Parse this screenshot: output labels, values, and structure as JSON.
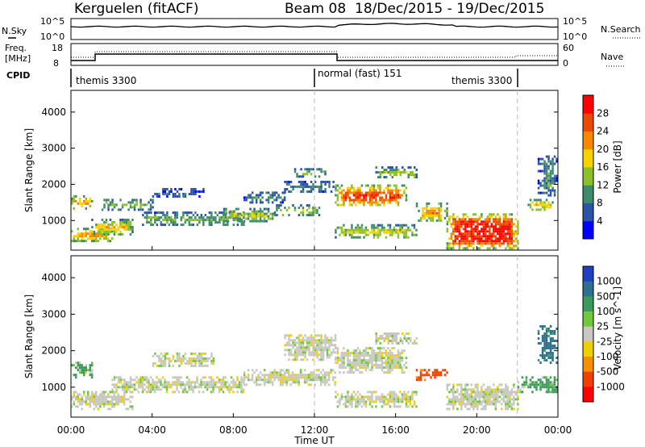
{
  "header": {
    "station": "Kerguelen (fitACF)",
    "beam": "Beam 08",
    "date_range": "18/Dec/2015 - 19/Dec/2015"
  },
  "noise_panel": {
    "left_label": "N.Sky",
    "right_label": "N.Search",
    "ticks_left": [
      "10^5",
      "10^0"
    ],
    "ticks_right": [
      "10^5",
      "10^0"
    ]
  },
  "freq_panel": {
    "left_label_1": "Freq.",
    "left_label_2": "[MHz]",
    "right_label": "Nave",
    "ticks_left": [
      "18",
      "8"
    ],
    "ticks_right": [
      "60",
      "0"
    ]
  },
  "cpid": {
    "label": "CPID",
    "segments": [
      {
        "name": "themis 3300",
        "start": 0,
        "end": 13
      },
      {
        "name": "normal (fast) 151",
        "start": 13,
        "end": 22
      },
      {
        "name": "themis 3300",
        "start": 22,
        "end": 24
      }
    ]
  },
  "chart_data": [
    {
      "type": "heatmap",
      "title": "Power",
      "xlabel": "",
      "ylabel": "Slant Range [km]",
      "x_range": [
        0,
        24
      ],
      "y_range": [
        180,
        4600
      ],
      "y_ticks": [
        1000,
        2000,
        3000,
        4000
      ],
      "colorbar": {
        "label": "Power [dB]",
        "ticks": [
          4,
          8,
          12,
          16,
          20,
          24,
          28
        ],
        "range": [
          0,
          32
        ],
        "colors": [
          "#0000ff",
          "#2b53a8",
          "#3d8a6c",
          "#8bbf2c",
          "#f6d300",
          "#f48800",
          "#e94b00",
          "#ff0000"
        ]
      },
      "echo_bands": [
        {
          "t0": 0.0,
          "t1": 2.0,
          "r0": 450,
          "r1": 800,
          "value": 26
        },
        {
          "t0": 0.0,
          "t1": 1.0,
          "r0": 1350,
          "r1": 1700,
          "value": 26
        },
        {
          "t0": 1.0,
          "t1": 3.0,
          "r0": 600,
          "r1": 1050,
          "value": 20
        },
        {
          "t0": 1.5,
          "t1": 4.0,
          "r0": 1300,
          "r1": 1600,
          "value": 16
        },
        {
          "t0": 3.5,
          "t1": 8.5,
          "r0": 850,
          "r1": 1250,
          "value": 14
        },
        {
          "t0": 4.0,
          "t1": 6.5,
          "r0": 1650,
          "r1": 1900,
          "value": 10
        },
        {
          "t0": 7.5,
          "t1": 10.0,
          "r0": 1000,
          "r1": 1350,
          "value": 18
        },
        {
          "t0": 8.5,
          "t1": 10.5,
          "r0": 1500,
          "r1": 1800,
          "value": 12
        },
        {
          "t0": 10.0,
          "t1": 12.2,
          "r0": 1150,
          "r1": 1450,
          "value": 18
        },
        {
          "t0": 10.5,
          "t1": 13.0,
          "r0": 1800,
          "r1": 2100,
          "value": 12
        },
        {
          "t0": 11.0,
          "t1": 12.5,
          "r0": 2200,
          "r1": 2450,
          "value": 18
        },
        {
          "t0": 13.0,
          "t1": 16.5,
          "r0": 1400,
          "r1": 2000,
          "value": 26
        },
        {
          "t0": 13.0,
          "t1": 17.0,
          "r0": 500,
          "r1": 900,
          "value": 18
        },
        {
          "t0": 15.0,
          "t1": 17.0,
          "r0": 2200,
          "r1": 2500,
          "value": 18
        },
        {
          "t0": 17.0,
          "t1": 18.5,
          "r0": 1000,
          "r1": 1500,
          "value": 22
        },
        {
          "t0": 18.5,
          "t1": 22.0,
          "r0": 250,
          "r1": 1200,
          "value": 29
        },
        {
          "t0": 22.5,
          "t1": 23.7,
          "r0": 1300,
          "r1": 1600,
          "value": 24
        },
        {
          "t0": 23.0,
          "t1": 24.0,
          "r0": 1700,
          "r1": 2800,
          "value": 10
        }
      ]
    },
    {
      "type": "heatmap",
      "title": "Velocity",
      "xlabel": "Time UT",
      "ylabel": "Slant Range [km]",
      "x_range": [
        0,
        24
      ],
      "y_range": [
        180,
        4600
      ],
      "x_ticks": [
        "00:00",
        "04:00",
        "08:00",
        "12:00",
        "16:00",
        "20:00",
        "00:00"
      ],
      "y_ticks": [
        1000,
        2000,
        3000,
        4000
      ],
      "colorbar": {
        "label": "Velocity [m s^-1]",
        "ticks": [
          "1000",
          "500",
          "100",
          "25",
          "-25",
          "-100",
          "-500",
          "-1000"
        ],
        "colors": [
          "#2040c0",
          "#2f6f8f",
          "#3c9a5c",
          "#70c83a",
          "#c8c8c0",
          "#f0d000",
          "#f59000",
          "#f04000",
          "#ff0000"
        ]
      },
      "echo_bands": [
        {
          "t0": 0.0,
          "t1": 3.0,
          "r0": 400,
          "r1": 900,
          "value": 0
        },
        {
          "t0": 0.0,
          "t1": 1.0,
          "r0": 1300,
          "r1": 1700,
          "value": 120
        },
        {
          "t0": 2.0,
          "t1": 8.5,
          "r0": 850,
          "r1": 1300,
          "value": 0
        },
        {
          "t0": 4.0,
          "t1": 7.0,
          "r0": 1600,
          "r1": 1950,
          "value": 0
        },
        {
          "t0": 8.5,
          "t1": 13.0,
          "r0": 1100,
          "r1": 1500,
          "value": 0
        },
        {
          "t0": 10.5,
          "t1": 13.0,
          "r0": 1750,
          "r1": 2450,
          "value": 0
        },
        {
          "t0": 13.0,
          "t1": 16.5,
          "r0": 1400,
          "r1": 2100,
          "value": 0
        },
        {
          "t0": 13.0,
          "t1": 17.0,
          "r0": 500,
          "r1": 900,
          "value": 0
        },
        {
          "t0": 15.0,
          "t1": 17.0,
          "r0": 2200,
          "r1": 2500,
          "value": 0
        },
        {
          "t0": 17.0,
          "t1": 18.5,
          "r0": 1200,
          "r1": 1500,
          "value": -400
        },
        {
          "t0": 18.5,
          "t1": 22.0,
          "r0": 400,
          "r1": 1100,
          "value": 0
        },
        {
          "t0": 22.0,
          "t1": 24.0,
          "r0": 900,
          "r1": 1300,
          "value": 150
        },
        {
          "t0": 23.0,
          "t1": 24.0,
          "r0": 1700,
          "r1": 2700,
          "value": 400
        }
      ]
    }
  ]
}
